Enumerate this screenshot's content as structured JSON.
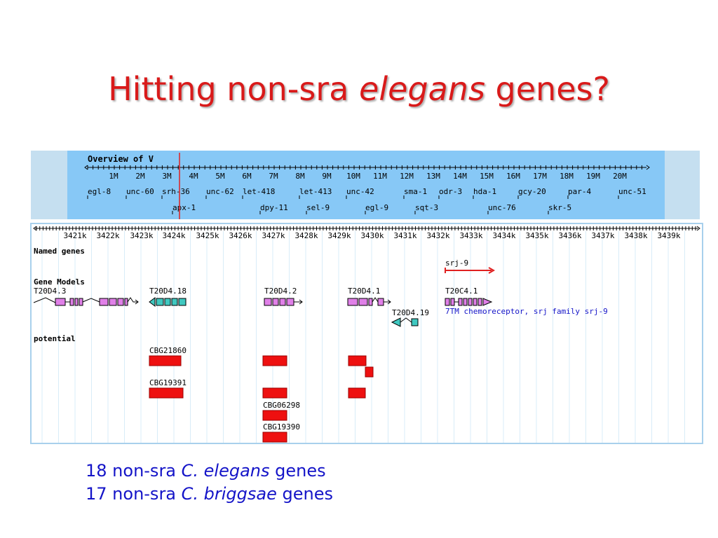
{
  "slide": {
    "title_plain_1": "Hitting non-sra ",
    "title_italic": "elegans",
    "title_plain_2": " genes?"
  },
  "overview": {
    "label": "Overview of V",
    "scale_labels": [
      "1M",
      "2M",
      "3M",
      "4M",
      "5M",
      "6M",
      "7M",
      "8M",
      "9M",
      "10M",
      "11M",
      "12M",
      "13M",
      "14M",
      "15M",
      "16M",
      "17M",
      "18M",
      "19M",
      "20M"
    ],
    "genes_row1": [
      "egl-8",
      "unc-60",
      "srh-36",
      "unc-62",
      "let-418",
      "let-413",
      "unc-42",
      "sma-1",
      "odr-3",
      "hda-1",
      "gcy-20",
      "par-4",
      "unc-51"
    ],
    "genes_row2": [
      "apx-1",
      "dpy-11",
      "sel-9",
      "egl-9",
      "sqt-3",
      "unc-76",
      "skr-5"
    ]
  },
  "detail": {
    "scale_labels": [
      "3421k",
      "3422k",
      "3423k",
      "3424k",
      "3425k",
      "3426k",
      "3427k",
      "3428k",
      "3429k",
      "3430k",
      "3431k",
      "3432k",
      "3433k",
      "3434k",
      "3435k",
      "3436k",
      "3437k",
      "3438k",
      "3439k"
    ],
    "tracks": {
      "named_genes": "Named genes",
      "gene_models": "Gene Models",
      "potential": "potential"
    },
    "named_gene": "srj-9",
    "gene_models": [
      "T20D4.3",
      "T20D4.18",
      "T20D4.2",
      "T20D4.1",
      "T20C4.1",
      "T20D4.19"
    ],
    "gene_note": "7TM chemoreceptor, srj family srj-9",
    "potential_labels": [
      "CBG21860",
      "CBG19391",
      "CBG06298",
      "CBG19390"
    ]
  },
  "footer": {
    "line1_a": "18 non-sra ",
    "line1_b": "C. elegans",
    "line1_c": " genes",
    "line2_a": "17 non-sra ",
    "line2_b": "C. briggsae",
    "line2_c": " genes"
  },
  "colors": {
    "title": "#d91a1a",
    "overview_bg": "#87c8f6",
    "position_marker": "#e02020",
    "gene_box_pink": "#e080e8",
    "gene_box_teal": "#40c8c0",
    "potential_box": "#ee1010",
    "note_text": "#1414c8"
  }
}
